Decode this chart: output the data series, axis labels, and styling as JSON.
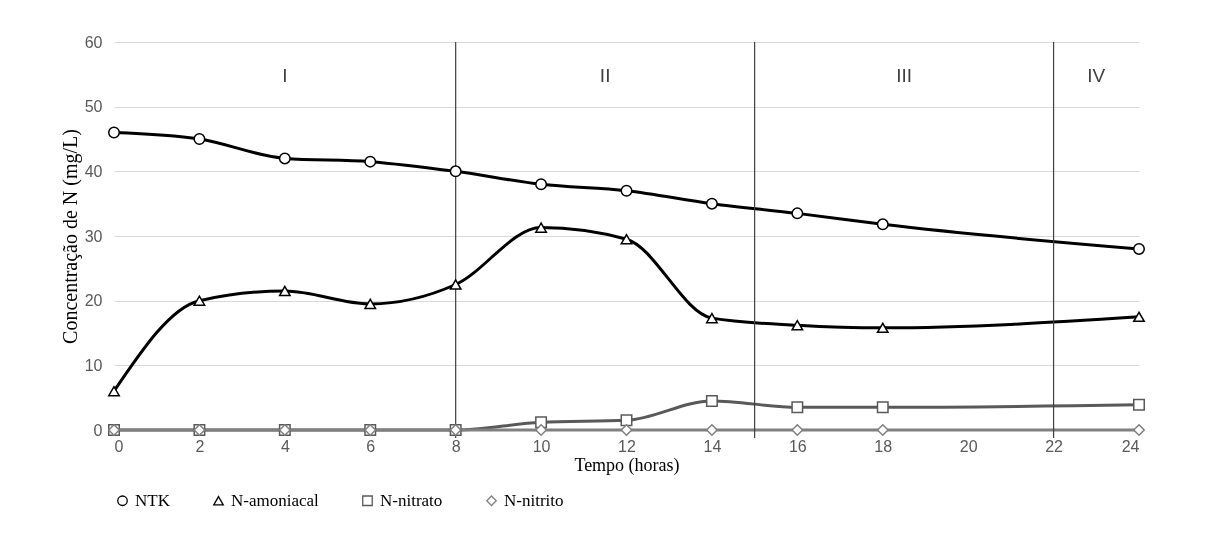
{
  "chart_data": {
    "type": "line",
    "xlabel": "Tempo (horas)",
    "ylabel": "Concentração de N (mg/L)",
    "x": [
      0,
      2,
      4,
      6,
      8,
      10,
      12,
      14,
      16,
      18,
      24
    ],
    "xlim": [
      0,
      24
    ],
    "xticks": [
      0,
      2,
      4,
      6,
      8,
      10,
      12,
      14,
      16,
      18,
      20,
      22,
      24
    ],
    "ylim": [
      0,
      60
    ],
    "yticks": [
      0,
      10,
      20,
      30,
      40,
      50,
      60
    ],
    "grid": "y",
    "legend": "bottom",
    "line_style": "solid",
    "series": [
      {
        "name": "NTK",
        "color": "#000000",
        "marker": "circle",
        "values": [
          46,
          45,
          42,
          41.5,
          40,
          38,
          37,
          35,
          33.5,
          31.8,
          28
        ]
      },
      {
        "name": "N-amoniacal",
        "color": "#000000",
        "marker": "triangle",
        "values": [
          6,
          20,
          21.5,
          19.5,
          22.5,
          31.3,
          29.5,
          17.3,
          16.2,
          15.8,
          17.5
        ]
      },
      {
        "name": "N-nitrato",
        "color": "#595959",
        "marker": "square",
        "values": [
          0,
          0,
          0,
          0,
          0,
          1.2,
          1.5,
          4.5,
          3.5,
          3.5,
          3.9
        ]
      },
      {
        "name": "N-nitrito",
        "color": "#808080",
        "marker": "diamond",
        "values": [
          0,
          0,
          0,
          0,
          0,
          0,
          0,
          0,
          0,
          0,
          0
        ]
      }
    ],
    "ref_lines": [
      {
        "axis": "x",
        "value": 8,
        "color": "#404040"
      },
      {
        "axis": "x",
        "value": 15,
        "color": "#404040"
      },
      {
        "axis": "x",
        "value": 22,
        "color": "#404040"
      }
    ],
    "annotations": [
      "I",
      "II",
      "III",
      "IV"
    ]
  }
}
